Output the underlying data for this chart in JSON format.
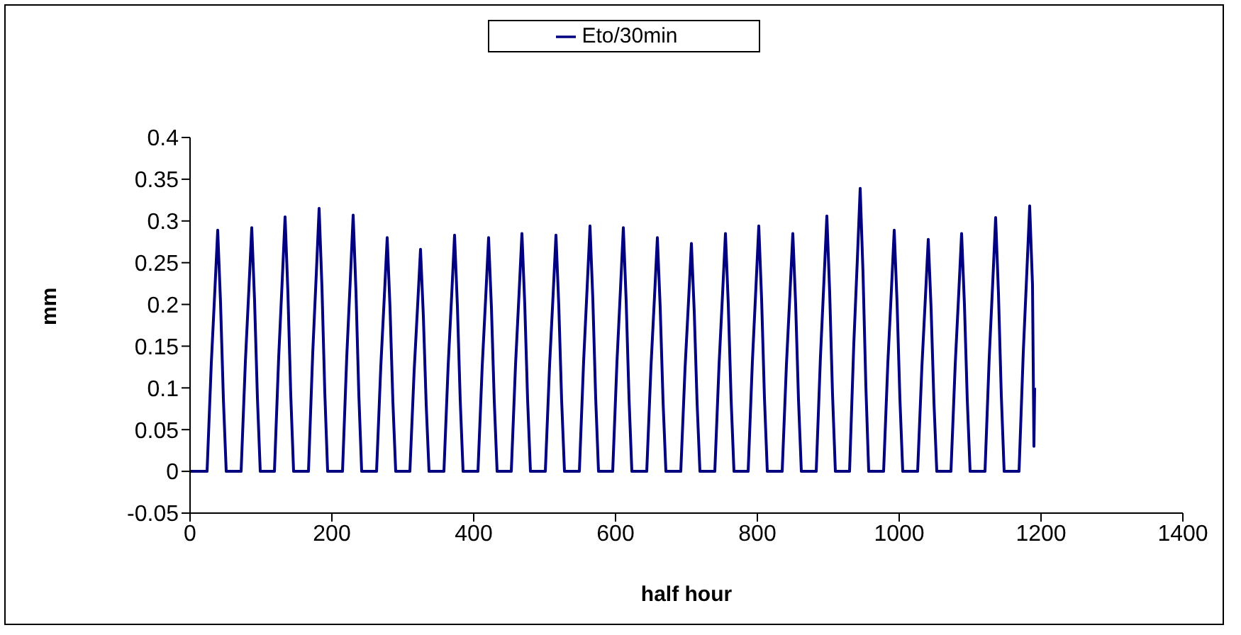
{
  "chart_data": {
    "type": "line",
    "xlabel": "half hour",
    "ylabel": "mm",
    "xlim": [
      0,
      1400
    ],
    "xticks": [
      0,
      200,
      400,
      600,
      800,
      1000,
      1200,
      1400
    ],
    "ylim": [
      -0.05,
      0.4
    ],
    "yticks": [
      -0.05,
      0,
      0.05,
      0.1,
      0.15,
      0.2,
      0.25,
      0.3,
      0.35,
      0.4
    ],
    "legend": "top",
    "marker": "none",
    "series": [
      {
        "name": "Eto/30min",
        "color": "#000080",
        "x": [
          0,
          24,
          30,
          35,
          39,
          43,
          47,
          51,
          72,
          78,
          83,
          87,
          91,
          95,
          99,
          119,
          125,
          130,
          134,
          138,
          142,
          146,
          167,
          173,
          178,
          182,
          186,
          190,
          194,
          215,
          221,
          226,
          230,
          234,
          238,
          242,
          263,
          269,
          274,
          278,
          282,
          286,
          290,
          310,
          316,
          321,
          325,
          329,
          333,
          337,
          358,
          364,
          369,
          373,
          377,
          381,
          385,
          406,
          412,
          417,
          421,
          425,
          429,
          433,
          453,
          459,
          464,
          468,
          472,
          476,
          480,
          501,
          507,
          512,
          516,
          520,
          524,
          528,
          549,
          555,
          560,
          564,
          568,
          572,
          576,
          596,
          602,
          607,
          611,
          615,
          619,
          623,
          644,
          650,
          655,
          659,
          663,
          667,
          671,
          692,
          698,
          703,
          707,
          711,
          715,
          719,
          740,
          746,
          751,
          755,
          759,
          763,
          767,
          787,
          793,
          798,
          802,
          806,
          810,
          814,
          835,
          841,
          846,
          850,
          854,
          858,
          862,
          883,
          889,
          894,
          898,
          902,
          906,
          910,
          930,
          936,
          941,
          945,
          949,
          953,
          957,
          978,
          984,
          989,
          993,
          997,
          1001,
          1005,
          1026,
          1032,
          1037,
          1041,
          1045,
          1049,
          1053,
          1073,
          1079,
          1084,
          1088,
          1092,
          1096,
          1100,
          1121,
          1127,
          1132,
          1136,
          1140,
          1144,
          1148,
          1169,
          1175,
          1180,
          1184,
          1188,
          1190,
          1191
        ],
        "values": [
          0,
          0,
          0.13,
          0.217,
          0.289,
          0.202,
          0.087,
          0,
          0,
          0.131,
          0.219,
          0.292,
          0.204,
          0.088,
          0,
          0,
          0.137,
          0.229,
          0.305,
          0.214,
          0.092,
          0,
          0,
          0.142,
          0.236,
          0.315,
          0.221,
          0.095,
          0,
          0,
          0.138,
          0.23,
          0.307,
          0.215,
          0.092,
          0,
          0,
          0.126,
          0.21,
          0.28,
          0.196,
          0.084,
          0,
          0,
          0.12,
          0.2,
          0.266,
          0.186,
          0.08,
          0,
          0,
          0.127,
          0.212,
          0.283,
          0.198,
          0.085,
          0,
          0,
          0.126,
          0.21,
          0.28,
          0.196,
          0.084,
          0,
          0,
          0.128,
          0.214,
          0.285,
          0.2,
          0.086,
          0,
          0,
          0.127,
          0.212,
          0.283,
          0.198,
          0.085,
          0,
          0,
          0.132,
          0.221,
          0.294,
          0.206,
          0.088,
          0,
          0,
          0.131,
          0.219,
          0.292,
          0.204,
          0.088,
          0,
          0,
          0.126,
          0.21,
          0.28,
          0.196,
          0.084,
          0,
          0,
          0.123,
          0.205,
          0.273,
          0.191,
          0.082,
          0,
          0,
          0.128,
          0.214,
          0.285,
          0.2,
          0.086,
          0,
          0,
          0.132,
          0.221,
          0.294,
          0.206,
          0.088,
          0,
          0,
          0.128,
          0.214,
          0.285,
          0.2,
          0.086,
          0,
          0,
          0.138,
          0.23,
          0.306,
          0.214,
          0.092,
          0,
          0,
          0.153,
          0.254,
          0.339,
          0.237,
          0.102,
          0,
          0,
          0.13,
          0.217,
          0.289,
          0.202,
          0.087,
          0,
          0,
          0.125,
          0.209,
          0.278,
          0.195,
          0.083,
          0,
          0,
          0.128,
          0.214,
          0.285,
          0.2,
          0.086,
          0,
          0,
          0.137,
          0.228,
          0.304,
          0.213,
          0.091,
          0,
          0,
          0.143,
          0.239,
          0.318,
          0.223,
          0.03,
          0.1
        ]
      }
    ]
  }
}
